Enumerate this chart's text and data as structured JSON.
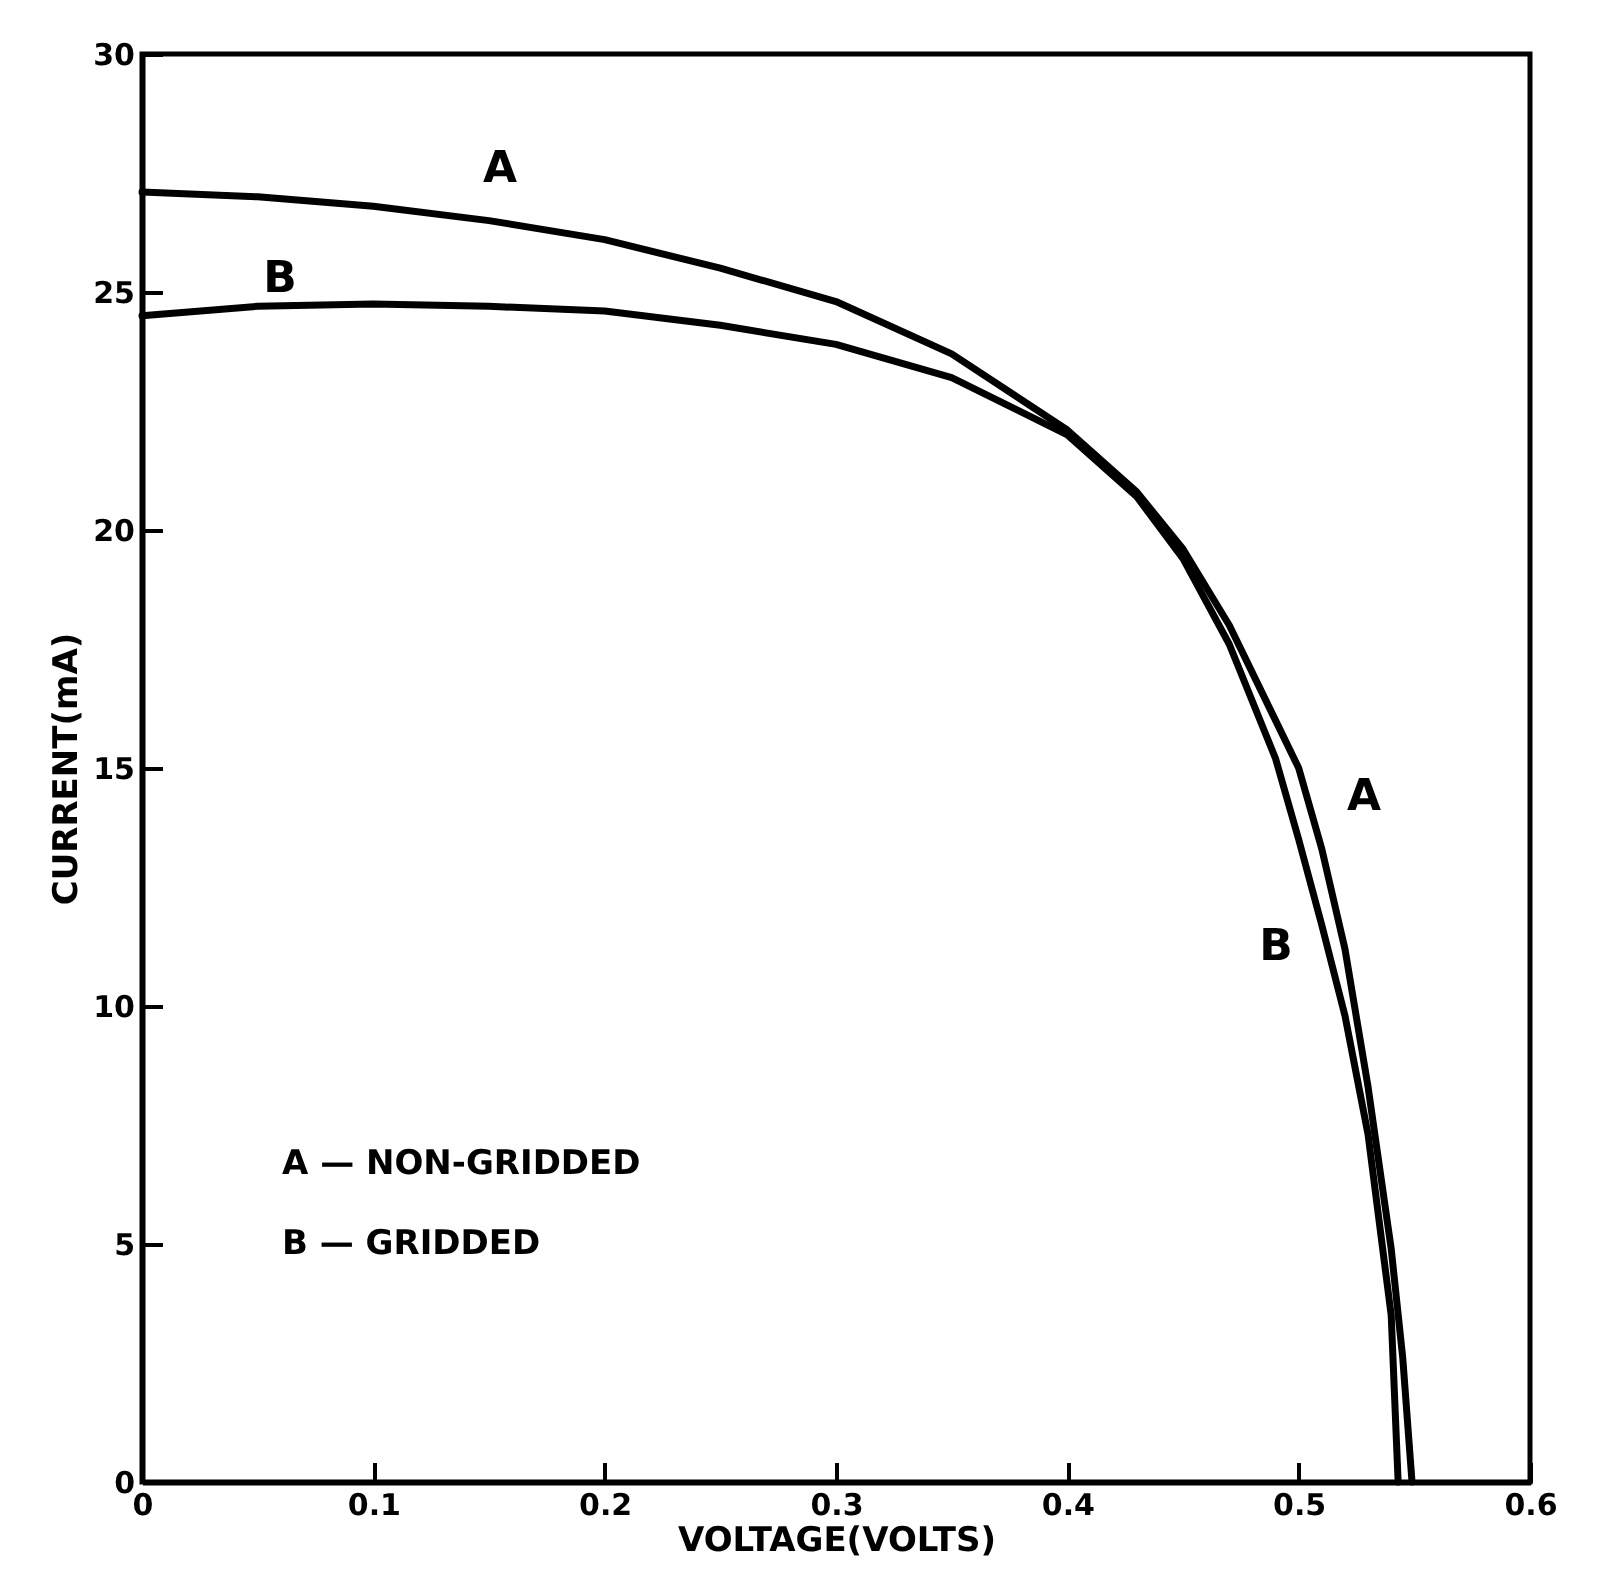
{
  "chart_data": {
    "type": "line",
    "xlabel": "VOLTAGE(VOLTS)",
    "ylabel": "CURRENT(mA)",
    "xlim": [
      0,
      0.6
    ],
    "ylim": [
      0,
      30
    ],
    "xticks": [
      {
        "value": 0,
        "label": "0"
      },
      {
        "value": 0.1,
        "label": "0.1"
      },
      {
        "value": 0.2,
        "label": "0.2"
      },
      {
        "value": 0.3,
        "label": "0.3"
      },
      {
        "value": 0.4,
        "label": "0.4"
      },
      {
        "value": 0.5,
        "label": "0.5"
      },
      {
        "value": 0.6,
        "label": "0.6"
      }
    ],
    "yticks": [
      0,
      5,
      10,
      15,
      20,
      25,
      30
    ],
    "marker": "none",
    "line_style": "solid",
    "series": [
      {
        "color": "#000000",
        "x": [
          0,
          0.05,
          0.1,
          0.15,
          0.2,
          0.25,
          0.3,
          0.35,
          0.4,
          0.43,
          0.45,
          0.47,
          0.49,
          0.5,
          0.51,
          0.52,
          0.53,
          0.54,
          0.545,
          0.549
        ],
        "values": [
          27.1,
          27.0,
          26.8,
          26.5,
          26.1,
          25.5,
          24.8,
          23.7,
          22.1,
          20.8,
          19.6,
          18.0,
          16.0,
          15.0,
          13.3,
          11.2,
          8.3,
          4.9,
          2.6,
          0
        ]
      },
      {
        "color": "#000000",
        "x": [
          0,
          0.05,
          0.1,
          0.15,
          0.2,
          0.25,
          0.3,
          0.35,
          0.4,
          0.43,
          0.45,
          0.47,
          0.49,
          0.5,
          0.51,
          0.52,
          0.53,
          0.54,
          0.543
        ],
        "values": [
          24.5,
          24.7,
          24.75,
          24.7,
          24.6,
          24.3,
          23.9,
          23.2,
          22.0,
          20.7,
          19.4,
          17.6,
          15.2,
          13.5,
          11.7,
          9.8,
          7.3,
          3.5,
          0
        ]
      }
    ],
    "annotations": [
      "A",
      "B",
      "A",
      "B",
      "A — NON-GRIDDED",
      "B — GRIDDED"
    ]
  }
}
